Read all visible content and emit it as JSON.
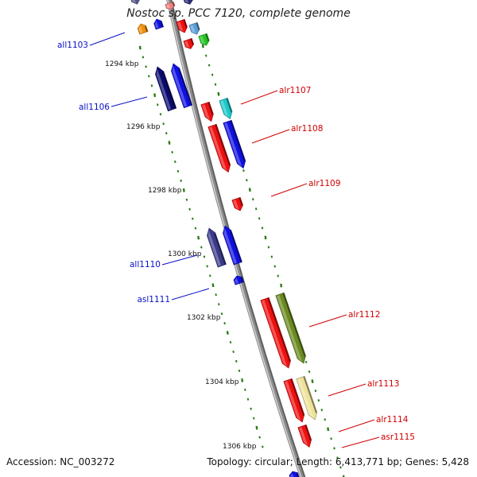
{
  "title": "Nostoc sp. PCC 7120, complete genome",
  "footer": {
    "accession": "Accession: NC_003272",
    "summary": "Topology: circular; Length: 6,413,771 bp; Genes: 5,428"
  },
  "colors": {
    "backbone": "#8c8c8c",
    "tick": "#2a7d14",
    "left_label": "#0a10c8",
    "right_label": "#d00000"
  },
  "scale_labels": [
    "1294 kbp",
    "1296 kbp",
    "1298 kbp",
    "1300 kbp",
    "1302 kbp",
    "1304 kbp",
    "1306 kbp"
  ],
  "genes": [
    {
      "id": "all1103",
      "label": "all1103",
      "strand": "reverse",
      "color": "#f0900c"
    },
    {
      "id": "all1106",
      "label": "all1106",
      "strand": "reverse",
      "color": "#0a0a6e"
    },
    {
      "id": "alr1107",
      "label": "alr1107",
      "strand": "forward",
      "color": "#1cc8c8"
    },
    {
      "id": "alr1108",
      "label": "alr1108",
      "strand": "forward",
      "color": "#1010e0"
    },
    {
      "id": "alr1109",
      "label": "alr1109",
      "strand": "forward",
      "color": "#ee1010"
    },
    {
      "id": "all1110",
      "label": "all1110",
      "strand": "reverse",
      "color": "#3a3a8a"
    },
    {
      "id": "asl1111",
      "label": "asl1111",
      "strand": "reverse",
      "color": "#1010e0"
    },
    {
      "id": "alr1112",
      "label": "alr1112",
      "strand": "forward",
      "color": "#6b8a22"
    },
    {
      "id": "alr1113",
      "label": "alr1113",
      "strand": "forward",
      "color": "#eee29a"
    },
    {
      "id": "alr1114",
      "label": "alr1114",
      "strand": "forward",
      "color": "#ee1010"
    },
    {
      "id": "asr1115",
      "label": "asr1115",
      "strand": "forward",
      "color": "#ee1010"
    }
  ]
}
